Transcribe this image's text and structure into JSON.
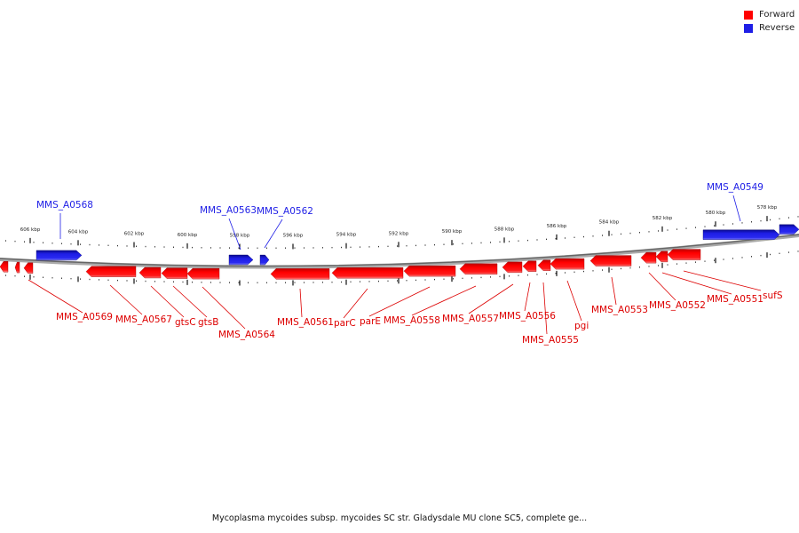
{
  "colors": {
    "forward": "#ff0000",
    "reverse": "#1e1ee6",
    "ring": "#777777"
  },
  "legend": {
    "forward": "Forward",
    "reverse": "Reverse"
  },
  "caption": "Mycoplasma mycoides subsp. mycoides SC str. Gladysdale MU clone SC5, complete ge...",
  "ticks": [
    "606 kbp",
    "604 kbp",
    "602 kbp",
    "600 kbp",
    "598 kbp",
    "596 kbp",
    "594 kbp",
    "592 kbp",
    "590 kbp",
    "588 kbp",
    "586 kbp",
    "584 kbp",
    "582 kbp",
    "580 kbp",
    "578 kbp"
  ],
  "reverse_labels": [
    "MMS_A0568",
    "MMS_A0563",
    "MMS_A0562",
    "MMS_A0549"
  ],
  "forward_labels": [
    "MMS_A0569",
    "MMS_A0567",
    "gtsC",
    "gtsB",
    "MMS_A0564",
    "MMS_A0561",
    "parC",
    "parE",
    "MMS_A0558",
    "MMS_A0557",
    "MMS_A0556",
    "MMS_A0555",
    "pgi",
    "MMS_A0553",
    "MMS_A0552",
    "MMS_A0551",
    "sufS"
  ]
}
